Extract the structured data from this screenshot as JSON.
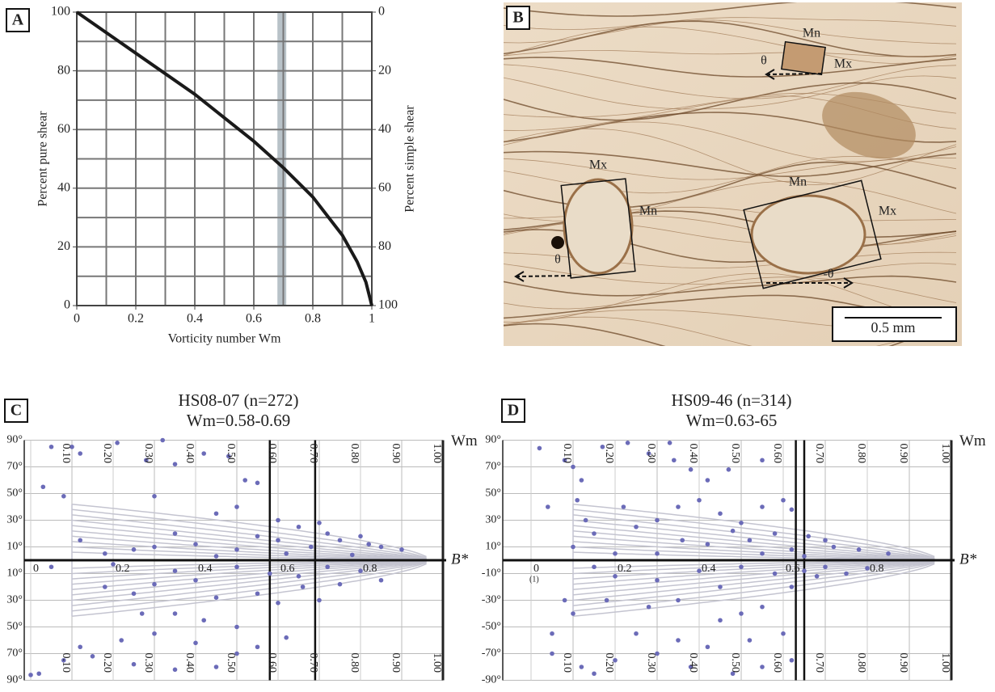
{
  "chart_data": [
    {
      "type": "line",
      "panel": "A",
      "x": [
        0,
        0.1,
        0.2,
        0.3,
        0.4,
        0.5,
        0.6,
        0.7,
        0.8,
        0.9,
        0.95,
        0.98,
        1
      ],
      "values": [
        100,
        93,
        86,
        79,
        72,
        64,
        56,
        47,
        37,
        24,
        15,
        8,
        0
      ],
      "color": "#1a1a1a",
      "xlim": [
        0,
        1
      ],
      "xticks": [
        0,
        0.2,
        0.4,
        0.6,
        0.8,
        1
      ],
      "ylim": [
        0,
        100
      ],
      "yticks": [
        0,
        20,
        40,
        60,
        80,
        100
      ],
      "y2lim": [
        100,
        0
      ],
      "y2ticks": [
        0,
        20,
        40,
        60,
        80,
        100
      ],
      "xgrid": [
        0.1,
        0.2,
        0.3,
        0.4,
        0.5,
        0.6,
        0.7,
        0.8,
        0.9
      ],
      "ygrid": [
        10,
        20,
        30,
        40,
        50,
        60,
        70,
        80,
        90
      ],
      "grid": true,
      "band": [
        0.68,
        0.71
      ],
      "band_color": "#b8c2c8",
      "xlabel": "Vorticity number Wm",
      "ylabel": "Percent pure shear",
      "y2label": "Percent simple shear"
    },
    {
      "type": "scatter",
      "panel": "C",
      "title": "HS08-07 (n=272)",
      "subtitle": "Wm=0.58-0.69",
      "x": [
        0.05,
        0.1,
        0.12,
        0.03,
        0.08,
        0.21,
        0.32,
        0.28,
        0.35,
        0.42,
        0.48,
        0.52,
        0.55,
        0.5,
        0.3,
        0.45,
        0.6,
        0.65,
        0.7,
        0.72,
        0.75,
        0.8,
        0.82,
        0.85,
        0.9,
        0.6,
        0.55,
        0.4,
        0.35,
        0.3,
        0.25,
        0.12,
        0.18,
        0.5,
        0.62,
        0.68,
        0.78,
        0.45,
        0.05,
        0.2,
        0.35,
        0.5,
        0.58,
        0.65,
        0.72,
        0.8,
        0.85,
        0.4,
        0.3,
        0.25,
        0.45,
        0.55,
        0.6,
        0.7,
        0.35,
        0.42,
        0.5,
        0.3,
        0.22,
        0.12,
        0.15,
        0.08,
        0.25,
        0.35,
        0.45,
        0.5,
        0.55,
        0.62,
        0.0,
        0.02,
        0.4,
        0.27,
        0.18,
        0.66,
        0.75
      ],
      "values": [
        85,
        85,
        80,
        55,
        48,
        88,
        90,
        75,
        72,
        80,
        78,
        60,
        58,
        40,
        48,
        35,
        30,
        25,
        28,
        20,
        15,
        18,
        12,
        10,
        8,
        15,
        18,
        12,
        20,
        10,
        8,
        15,
        5,
        8,
        5,
        10,
        4,
        3,
        -5,
        -3,
        -8,
        -5,
        -10,
        -12,
        -5,
        -8,
        -15,
        -15,
        -18,
        -25,
        -28,
        -25,
        -32,
        -30,
        -40,
        -45,
        -50,
        -55,
        -60,
        -65,
        -72,
        -75,
        -78,
        -82,
        -80,
        -70,
        -65,
        -58,
        -86,
        -85,
        -62,
        -40,
        -20,
        -20,
        -18
      ],
      "color": "#6b6bb8",
      "xlim": [
        0,
        1
      ],
      "xticks": [
        0,
        0.2,
        0.4,
        0.6,
        0.8
      ],
      "ylim": [
        -90,
        90
      ],
      "yticks": [
        {
          "value": 90,
          "label": "90°"
        },
        {
          "value": 70,
          "label": "70°"
        },
        {
          "value": 50,
          "label": "50°"
        },
        {
          "value": 30,
          "label": "30°"
        },
        {
          "value": 10,
          "label": "10°"
        },
        {
          "value": -10,
          "label": "10°"
        },
        {
          "value": -30,
          "label": "30°"
        },
        {
          "value": -50,
          "label": "50°"
        },
        {
          "value": -70,
          "label": "70°"
        },
        {
          "value": -90,
          "label": "90°"
        }
      ],
      "x2lim": [
        0,
        1
      ],
      "x2ticks": [
        {
          "value": 0.1,
          "label": "0.10"
        },
        {
          "value": 0.2,
          "label": "0.20"
        },
        {
          "value": 0.3,
          "label": "0.30"
        },
        {
          "value": 0.4,
          "label": "0.40"
        },
        {
          "value": 0.5,
          "label": "0.50"
        },
        {
          "value": 0.6,
          "label": "0.60"
        },
        {
          "value": 0.7,
          "label": "0.70"
        },
        {
          "value": 0.8,
          "label": "0.80"
        },
        {
          "value": 0.9,
          "label": "0.90"
        },
        {
          "value": 1,
          "label": "1.00"
        }
      ],
      "x2label": "Wm",
      "xlabel": "B*",
      "wm_range": [
        0.58,
        0.69
      ]
    },
    {
      "type": "scatter",
      "panel": "D",
      "title": "HS09-46 (n=314)",
      "subtitle": "Wm=0.63-65",
      "x": [
        0.02,
        0.04,
        0.08,
        0.1,
        0.12,
        0.11,
        0.13,
        0.15,
        0.1,
        0.17,
        0.23,
        0.28,
        0.33,
        0.34,
        0.38,
        0.42,
        0.4,
        0.35,
        0.3,
        0.25,
        0.45,
        0.5,
        0.55,
        0.6,
        0.62,
        0.58,
        0.52,
        0.48,
        0.42,
        0.36,
        0.66,
        0.7,
        0.72,
        0.78,
        0.85,
        0.2,
        0.3,
        0.55,
        0.62,
        0.65,
        0.47,
        0.55,
        0.22,
        0.08,
        0.05,
        0.12,
        0.15,
        0.2,
        0.25,
        0.3,
        0.35,
        0.38,
        0.42,
        0.45,
        0.5,
        0.55,
        0.6,
        0.62,
        0.58,
        0.5,
        0.4,
        0.3,
        0.2,
        0.15,
        0.65,
        0.68,
        0.7,
        0.75,
        0.8,
        0.52,
        0.48,
        0.55,
        0.62,
        0.35,
        0.28,
        0.18,
        0.45,
        0.05,
        0.1
      ],
      "values": [
        84,
        40,
        75,
        70,
        60,
        45,
        30,
        20,
        10,
        85,
        88,
        80,
        88,
        75,
        68,
        60,
        45,
        40,
        30,
        25,
        35,
        28,
        40,
        45,
        38,
        20,
        15,
        22,
        12,
        15,
        18,
        15,
        10,
        8,
        5,
        5,
        5,
        5,
        8,
        3,
        68,
        75,
        40,
        -30,
        -55,
        -80,
        -85,
        -75,
        -55,
        -70,
        -60,
        -80,
        -65,
        -45,
        -40,
        -35,
        -55,
        -20,
        -10,
        -5,
        -8,
        -15,
        -12,
        -5,
        -8,
        -12,
        -5,
        -10,
        -6,
        -60,
        -85,
        -80,
        -75,
        -30,
        -35,
        -30,
        -20,
        -70,
        -40
      ],
      "color": "#6b6bb8",
      "xlim": [
        0,
        1
      ],
      "xticks": [
        0,
        0.2,
        0.4,
        0.6,
        0.8
      ],
      "ylim": [
        -90,
        90
      ],
      "yticks": [
        {
          "value": 90,
          "label": "90°"
        },
        {
          "value": 70,
          "label": "70°"
        },
        {
          "value": 50,
          "label": "50°"
        },
        {
          "value": 30,
          "label": "30°"
        },
        {
          "value": 10,
          "label": "10°"
        },
        {
          "value": -10,
          "label": "-10°"
        },
        {
          "value": -30,
          "label": "-30°"
        },
        {
          "value": -50,
          "label": "-50°"
        },
        {
          "value": -70,
          "label": "-70°"
        },
        {
          "value": -90,
          "label": "-90°"
        }
      ],
      "x2lim": [
        0,
        1
      ],
      "x2ticks": [
        {
          "value": 0.1,
          "label": "0.10"
        },
        {
          "value": 0.2,
          "label": "0.20"
        },
        {
          "value": 0.3,
          "label": "0.30"
        },
        {
          "value": 0.4,
          "label": "0.40"
        },
        {
          "value": 0.5,
          "label": "0.50"
        },
        {
          "value": 0.6,
          "label": "0.60"
        },
        {
          "value": 0.7,
          "label": "0.70"
        },
        {
          "value": 0.8,
          "label": "0.80"
        },
        {
          "value": 0.9,
          "label": "0.90"
        },
        {
          "value": 1,
          "label": "1.00"
        }
      ],
      "x2label": "Wm",
      "xlabel": "B*",
      "annotation": "(1)",
      "wm_range": [
        0.63,
        0.65
      ]
    }
  ],
  "micrograph": {
    "panel": "B",
    "labels": [
      "Mn",
      "Mx",
      "θ",
      "Mx",
      "Mn",
      "θ",
      "Mn",
      "Mx",
      "-θ"
    ],
    "scale_bar": "0.5 mm"
  }
}
